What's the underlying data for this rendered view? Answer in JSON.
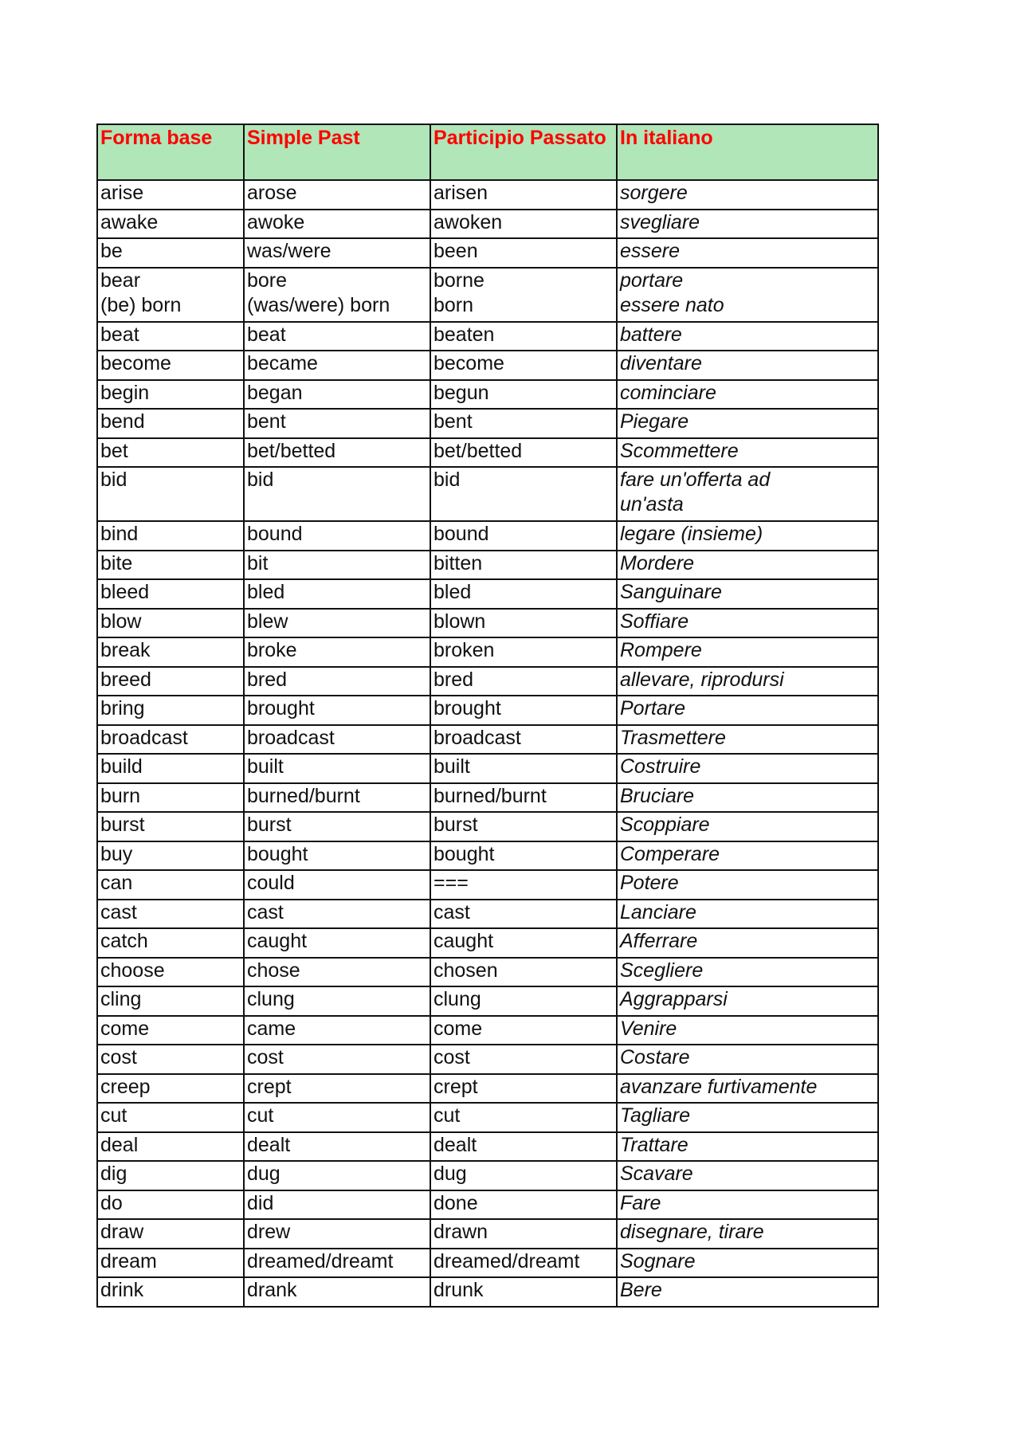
{
  "header": [
    "Forma base",
    "Simple Past",
    "Participio Passato",
    "In italiano"
  ],
  "colors": {
    "header_bg": "#b0e6b8",
    "header_text": "#ff0000"
  },
  "rows": [
    [
      "arise",
      "arose",
      "arisen",
      "sorgere"
    ],
    [
      "awake",
      "awoke",
      "awoken",
      "svegliare"
    ],
    [
      "be",
      "was/were",
      "been",
      "essere"
    ],
    [
      "bear\n(be) born",
      "bore\n(was/were) born",
      "borne\nborn",
      "portare\nessere nato"
    ],
    [
      "beat",
      "beat",
      "beaten",
      "battere"
    ],
    [
      "become",
      "became",
      "become",
      "diventare"
    ],
    [
      "begin",
      "began",
      "begun",
      "cominciare"
    ],
    [
      "bend",
      "bent",
      "bent",
      "Piegare"
    ],
    [
      "bet",
      "bet/betted",
      "bet/betted",
      "Scommettere"
    ],
    [
      "bid",
      "bid",
      "bid",
      "fare un'offerta ad\nun'asta"
    ],
    [
      "bind",
      "bound",
      "bound",
      "legare (insieme)"
    ],
    [
      "bite",
      "bit",
      "bitten",
      "Mordere"
    ],
    [
      "bleed",
      "bled",
      "bled",
      "Sanguinare"
    ],
    [
      "blow",
      "blew",
      "blown",
      "Soffiare"
    ],
    [
      "break",
      "broke",
      "broken",
      "Rompere"
    ],
    [
      "breed",
      "bred",
      "bred",
      "allevare, riprodursi"
    ],
    [
      "bring",
      "brought",
      "brought",
      "Portare"
    ],
    [
      "broadcast",
      "broadcast",
      "broadcast",
      "Trasmettere"
    ],
    [
      "build",
      "built",
      "built",
      "Costruire"
    ],
    [
      "burn",
      "burned/burnt",
      "burned/burnt",
      "Bruciare"
    ],
    [
      "burst",
      "burst",
      "burst",
      "Scoppiare"
    ],
    [
      "buy",
      "bought",
      "bought",
      "Comperare"
    ],
    [
      "can",
      "could",
      "===",
      "Potere"
    ],
    [
      "cast",
      "cast",
      "cast",
      "Lanciare"
    ],
    [
      "catch",
      "caught",
      "caught",
      "Afferrare"
    ],
    [
      "choose",
      "chose",
      "chosen",
      "Scegliere"
    ],
    [
      "cling",
      "clung",
      "clung",
      "Aggrapparsi"
    ],
    [
      "come",
      "came",
      "come",
      "Venire"
    ],
    [
      "cost",
      "cost",
      "cost",
      "Costare"
    ],
    [
      "creep",
      "crept",
      "crept",
      "avanzare furtivamente"
    ],
    [
      "cut",
      "cut",
      "cut",
      "Tagliare"
    ],
    [
      "deal",
      "dealt",
      "dealt",
      "Trattare"
    ],
    [
      "dig",
      "dug",
      "dug",
      "Scavare"
    ],
    [
      "do",
      "did",
      "done",
      "Fare"
    ],
    [
      "draw",
      "drew",
      "drawn",
      "disegnare, tirare"
    ],
    [
      "dream",
      "dreamed/dreamt",
      "dreamed/dreamt",
      "Sognare"
    ],
    [
      "drink",
      "drank",
      "drunk",
      "Bere"
    ]
  ]
}
